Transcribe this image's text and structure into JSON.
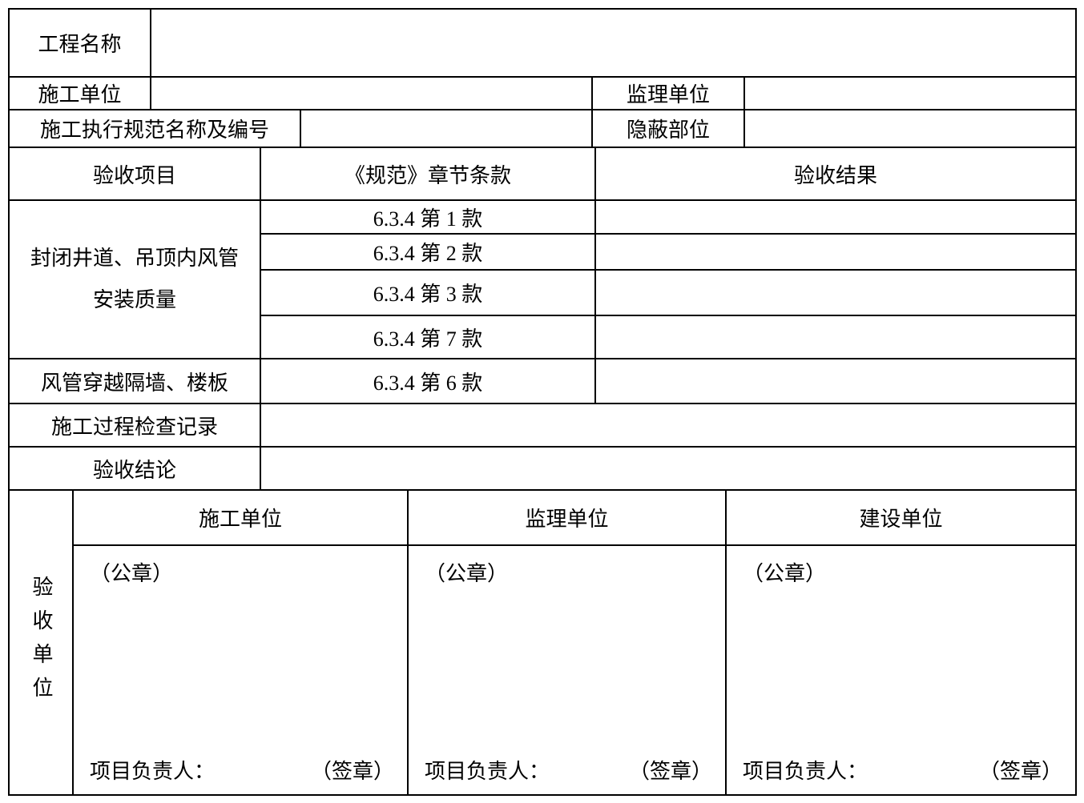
{
  "form": {
    "info": {
      "project_name_label": "工程名称",
      "construction_unit_label": "施工单位",
      "supervision_unit_label": "监理单位",
      "spec_name_label": "施工执行规范名称及编号",
      "concealed_part_label": "隐蔽部位"
    },
    "table": {
      "header": {
        "item": "验收项目",
        "clause": "《规范》章节条款",
        "result": "验收结果"
      },
      "items": [
        {
          "name": "封闭井道、吊顶内风管安装质量",
          "clauses": [
            "6.3.4 第 1 款",
            "6.3.4 第 2 款",
            "6.3.4 第 3 款",
            "6.3.4 第 7 款"
          ]
        },
        {
          "name": "风管穿越隔墙、楼板",
          "clauses": [
            "6.3.4 第 6 款"
          ]
        }
      ],
      "process_record_label": "施工过程检查记录",
      "conclusion_label": "验收结论"
    },
    "signoff": {
      "side_label": "验收单位",
      "columns": [
        "施工单位",
        "监理单位",
        "建设单位"
      ],
      "seal_label": "（公章）",
      "leader_label": "项目负责人：",
      "sign_label": "（签章）"
    },
    "colors": {
      "border": "#000000",
      "text": "#000000",
      "background": "#ffffff"
    }
  }
}
